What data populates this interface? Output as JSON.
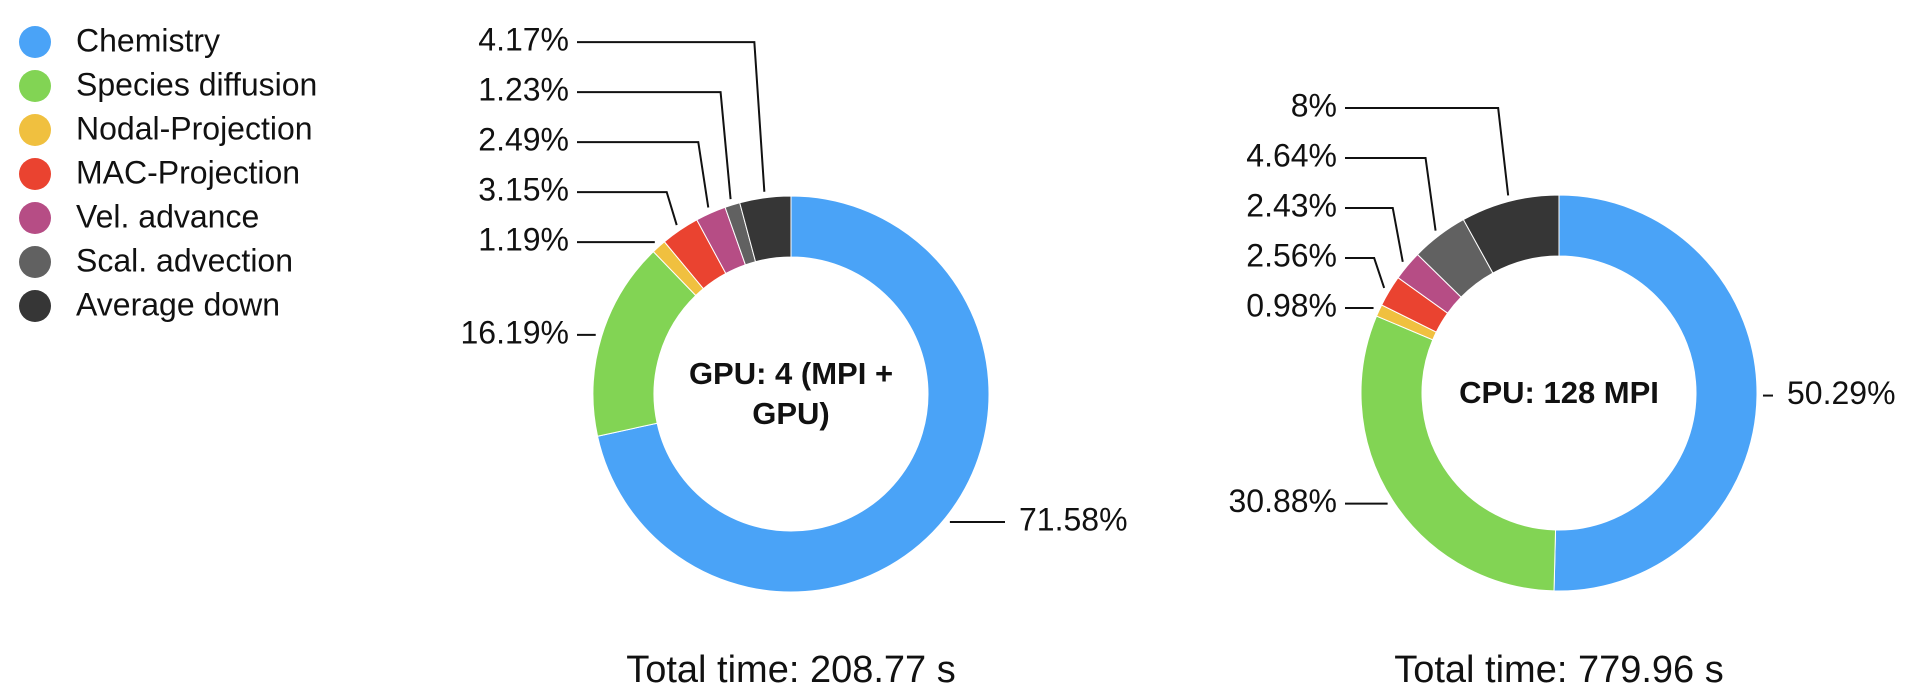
{
  "chart_data": [
    {
      "type": "pie",
      "categories": [
        "Chemistry",
        "Species diffusion",
        "Nodal-Projection",
        "MAC-Projection",
        "Vel. advance",
        "Scal. advection",
        "Average down"
      ],
      "colors": [
        "#4aa3f7",
        "#82d454",
        "#f0c03f",
        "#ea4330",
        "#b64d85",
        "#616161",
        "#363636"
      ],
      "values": [
        71.58,
        16.19,
        1.19,
        3.15,
        2.49,
        1.23,
        4.17
      ],
      "value_labels": [
        "71.58%",
        "16.19%",
        "1.19%",
        "3.15%",
        "2.49%",
        "1.23%",
        "4.17%"
      ],
      "center_label": "GPU: 4 (MPI + GPU)",
      "footer": "Total time: 208.77 s"
    },
    {
      "type": "pie",
      "colors": [
        "#4aa3f7",
        "#82d454",
        "#f0c03f",
        "#ea4330",
        "#b64d85",
        "#616161",
        "#363636"
      ],
      "values": [
        50.29,
        30.88,
        0.98,
        2.56,
        2.43,
        4.64,
        8
      ],
      "value_labels": [
        "50.29%",
        "30.88%",
        "0.98%",
        "2.56%",
        "2.43%",
        "4.64%",
        "8%"
      ],
      "center_label": "CPU: 128 MPI",
      "footer": "Total time: 779.96 s"
    }
  ]
}
